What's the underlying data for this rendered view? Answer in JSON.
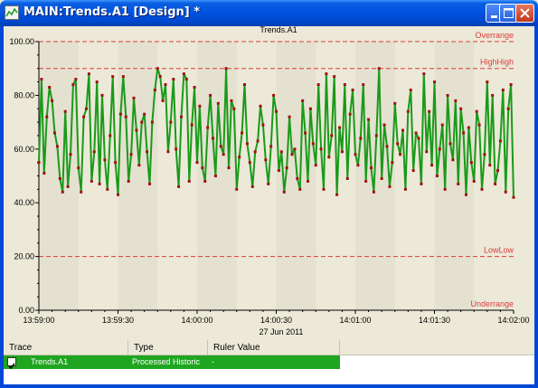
{
  "window": {
    "title": "MAIN:Trends.A1 [Design] *"
  },
  "chart_data": {
    "type": "line",
    "title": "Trends.A1",
    "xlabel": "27 Jun 2011",
    "ylabel": "",
    "ylim": [
      0,
      100
    ],
    "yticks": [
      "0.00",
      "20.00",
      "40.00",
      "60.00",
      "80.00",
      "100.00"
    ],
    "xticks": [
      "13:59:00",
      "13:59:30",
      "14:00:00",
      "14:00:30",
      "14:01:00",
      "14:01:30",
      "14:02:00"
    ],
    "xlim_seconds": [
      0,
      180
    ],
    "grid": false,
    "limits": [
      {
        "name": "Overrange",
        "value": 100,
        "color": "#e03a3a"
      },
      {
        "name": "HighHigh",
        "value": 90,
        "color": "#e03a3a"
      },
      {
        "name": "LowLow",
        "value": 20,
        "color": "#e03a3a"
      },
      {
        "name": "Underrange",
        "value": 0,
        "color": "#e03a3a"
      }
    ],
    "series": [
      {
        "name": "Trends.A1",
        "color": "#1a9a1a",
        "marker_color": "#a01010",
        "x": [
          0,
          1,
          2,
          3,
          4,
          5,
          6,
          7,
          8,
          9,
          10,
          11,
          12,
          13,
          14,
          15,
          16,
          17,
          18,
          19,
          20,
          21,
          22,
          23,
          24,
          25,
          26,
          27,
          28,
          29,
          30,
          31,
          32,
          33,
          34,
          35,
          36,
          37,
          38,
          39,
          40,
          41,
          42,
          43,
          44,
          45,
          46,
          47,
          48,
          49,
          50,
          51,
          52,
          53,
          54,
          55,
          56,
          57,
          58,
          59,
          60,
          61,
          62,
          63,
          64,
          65,
          66,
          67,
          68,
          69,
          70,
          71,
          72,
          73,
          74,
          75,
          76,
          77,
          78,
          79,
          80,
          81,
          82,
          83,
          84,
          85,
          86,
          87,
          88,
          89,
          90,
          91,
          92,
          93,
          94,
          95,
          96,
          97,
          98,
          99,
          100,
          101,
          102,
          103,
          104,
          105,
          106,
          107,
          108,
          109,
          110,
          111,
          112,
          113,
          114,
          115,
          116,
          117,
          118,
          119,
          120,
          121,
          122,
          123,
          124,
          125,
          126,
          127,
          128,
          129,
          130,
          131,
          132,
          133,
          134,
          135,
          136,
          137,
          138,
          139,
          140,
          141,
          142,
          143,
          144,
          145,
          146,
          147,
          148,
          149,
          150,
          151,
          152,
          153,
          154,
          155,
          156,
          157,
          158,
          159,
          160,
          161,
          162,
          163,
          164,
          165,
          166,
          167,
          168,
          169,
          170,
          171,
          172,
          173,
          174,
          175,
          176,
          177,
          178,
          179,
          180
        ],
        "values": [
          55,
          86,
          51,
          72,
          83,
          78,
          66,
          61,
          49,
          44,
          74,
          46,
          58,
          84,
          86,
          53,
          44,
          72,
          75,
          88,
          48,
          59,
          85,
          47,
          80,
          56,
          45,
          65,
          87,
          55,
          43,
          73,
          87,
          72,
          48,
          58,
          79,
          67,
          54,
          70,
          73,
          59,
          47,
          70,
          82,
          90,
          87,
          78,
          84,
          59,
          70,
          86,
          60,
          46,
          72,
          88,
          86,
          48,
          69,
          83,
          55,
          76,
          53,
          48,
          68,
          80,
          64,
          50,
          77,
          61,
          58,
          90,
          53,
          78,
          75,
          45,
          57,
          66,
          84,
          62,
          55,
          46,
          59,
          63,
          76,
          69,
          56,
          47,
          61,
          80,
          74,
          52,
          59,
          44,
          53,
          72,
          58,
          60,
          49,
          45,
          78,
          66,
          48,
          75,
          62,
          54,
          84,
          60,
          45,
          88,
          57,
          65,
          87,
          43,
          68,
          59,
          84,
          49,
          73,
          82,
          58,
          54,
          64,
          84,
          48,
          71,
          53,
          44,
          65,
          90,
          49,
          69,
          61,
          46,
          55,
          77,
          62,
          58,
          67,
          45,
          74,
          82,
          52,
          66,
          64,
          47,
          88,
          59,
          74,
          54,
          85,
          50,
          60,
          69,
          45,
          80,
          62,
          56,
          78,
          47,
          75,
          66,
          43,
          68,
          55,
          48,
          74,
          69,
          45,
          58,
          85,
          54,
          80,
          47,
          52,
          63,
          82,
          44,
          75,
          84,
          42
        ]
      }
    ]
  },
  "trace_table": {
    "headers": {
      "trace": "Trace",
      "type": "Type",
      "ruler": "Ruler Value"
    },
    "rows": [
      {
        "checked": true,
        "trace": "Trends.A1",
        "type": "Processed Historic",
        "ruler": "-"
      }
    ]
  }
}
